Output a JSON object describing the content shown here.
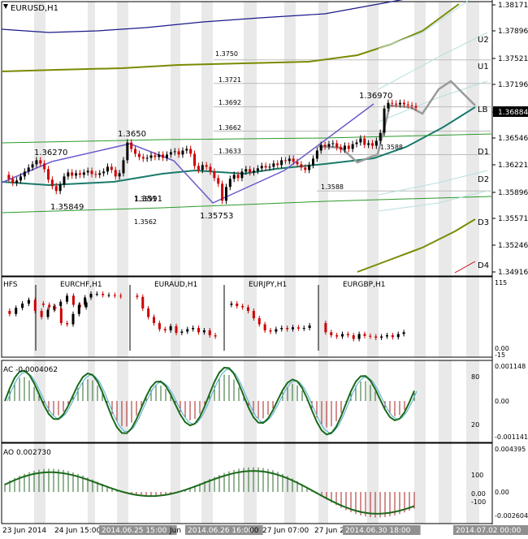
{
  "chart_title": "EURUSD,H1",
  "colors": {
    "grid": "#d8d8d8",
    "frame": "#000000",
    "bull": "#000000",
    "bear": "#cc0000",
    "ema_outer": "#1a1a8a",
    "ema_olive": "#7a8a00",
    "ema_teal": "#1a7a6a",
    "green_line": "#2a9a2a",
    "zigzag": "#6a5acd",
    "projection": "#9a9a9a",
    "ao_line": "#1a6a1a"
  },
  "price_axis": {
    "ticks": [
      "1.38171",
      "1.37896",
      "1.37521",
      "1.37196",
      "1.36884",
      "1.36546",
      "1.36221",
      "1.35896",
      "1.35571",
      "1.35246",
      "1.34916"
    ],
    "current_price": "1.36884"
  },
  "pivot_labels": [
    "U2",
    "U1",
    "LB",
    "D1",
    "D2",
    "D3",
    "D4"
  ],
  "level_labels": [
    "1.3750",
    "1.3721",
    "1.3692",
    "1.3662",
    "1.3633",
    "1.3588",
    "1.3562",
    "1.3591",
    "1.3588"
  ],
  "zigzag_labels": [
    "1.36270",
    "1.3650",
    "1.35849",
    "1.3591",
    "1.35753",
    "1.36970"
  ],
  "mini_panel": {
    "left_label": "HFS",
    "titles": [
      "EURCHF,H1",
      "EURAUD,H1",
      "EURJPY,H1",
      "EURGBP,H1"
    ],
    "axis": [
      "115",
      "0.00",
      "-15"
    ]
  },
  "ac_panel": {
    "title": "AC -0.0004062",
    "axis_left": [
      "0.001148",
      "0.00",
      "-0.001141"
    ],
    "axis_inner": [
      "80",
      "20"
    ]
  },
  "ao_panel": {
    "title": "AO 0.002730",
    "axis_left": [
      "0.004395",
      "0.00",
      "-0.002604"
    ],
    "axis_inner": [
      "100",
      "0.00",
      "-100"
    ]
  },
  "time_axis": {
    "labels": [
      "23 Jun 2014",
      "24 Jun 15:00",
      "2014.06.25 15:00",
      "Jun",
      "2014.06.26 16:00",
      "00",
      "27 Jun 07:00",
      "27 Jun 23:",
      "2014.06.30 18:00",
      "2014.07.02 00:00"
    ]
  },
  "chart_data": {
    "type": "candlestick",
    "title": "EURUSD,H1",
    "timeframe": "H1",
    "ylim": [
      1.3485,
      1.382
    ],
    "price_ticks": [
      1.38171,
      1.37896,
      1.37521,
      1.37196,
      1.36884,
      1.36546,
      1.36221,
      1.35896,
      1.35571,
      1.35246,
      1.34916
    ],
    "last_price": 1.36884,
    "pivot_levels": [
      {
        "name": "U2",
        "value": 1.3785
      },
      {
        "name": "U1",
        "value": 1.3742
      },
      {
        "name": "LB",
        "value": 1.3684
      },
      {
        "name": "D1",
        "value": 1.363
      },
      {
        "name": "D2",
        "value": 1.3595
      },
      {
        "name": "D3",
        "value": 1.3545
      },
      {
        "name": "D4",
        "value": 1.3495
      }
    ],
    "zigzag": [
      {
        "label": "1.36270",
        "value": 1.3627
      },
      {
        "label": "1.35849",
        "value": 1.35849
      },
      {
        "label": "1.3650",
        "value": 1.365
      },
      {
        "label": "1.35753",
        "value": 1.35753
      },
      {
        "label": "1.36970",
        "value": 1.3697
      }
    ],
    "series": [
      {
        "values": [
          1.3608,
          1.3603,
          1.3598,
          1.3601,
          1.3606,
          1.3612,
          1.3617,
          1.3621,
          1.3626,
          1.3622,
          1.3615,
          1.3602,
          1.3594,
          1.3588,
          1.3596,
          1.3606,
          1.3611,
          1.3607,
          1.361,
          1.3608,
          1.3611,
          1.3613,
          1.3609,
          1.3608,
          1.361,
          1.3612,
          1.3618,
          1.3614,
          1.3606,
          1.361,
          1.3626,
          1.3648,
          1.364,
          1.3634,
          1.363,
          1.3628,
          1.3629,
          1.3632,
          1.363,
          1.3633,
          1.3629,
          1.3633,
          1.3636,
          1.3637,
          1.3633,
          1.3638,
          1.364,
          1.3634,
          1.3619,
          1.3614,
          1.362,
          1.3618,
          1.3612,
          1.3604,
          1.3597,
          1.3576,
          1.3593,
          1.3603,
          1.3608,
          1.3604,
          1.3612,
          1.3615,
          1.3611,
          1.3613,
          1.3616,
          1.3619,
          1.3617,
          1.3618,
          1.3622,
          1.362,
          1.3626,
          1.3625,
          1.3628,
          1.3624,
          1.3621,
          1.3617,
          1.3614,
          1.362,
          1.3628,
          1.3638,
          1.3645,
          1.3643,
          1.3646,
          1.3647,
          1.3642,
          1.3639,
          1.3644,
          1.364,
          1.3646,
          1.3648,
          1.3653,
          1.3645,
          1.3647,
          1.3644,
          1.365,
          1.366,
          1.369,
          1.3697,
          1.3696,
          1.3695,
          1.3697,
          1.3695,
          1.3694,
          1.3693,
          1.3691
        ]
      }
    ]
  }
}
